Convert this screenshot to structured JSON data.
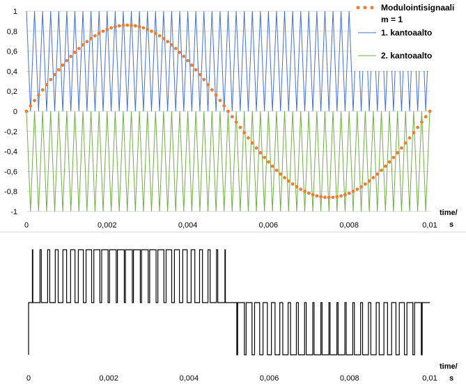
{
  "chart_data": [
    {
      "type": "line",
      "xlabel_lines": [
        "time/",
        "s"
      ],
      "xlim": [
        0,
        0.01
      ],
      "ylim": [
        -1,
        1
      ],
      "x_ticks": [
        0,
        0.002,
        0.004,
        0.006,
        0.008,
        0.01
      ],
      "x_tick_labels": [
        "0",
        "0,002",
        "0,004",
        "0,006",
        "0,008",
        "0,01"
      ],
      "y_ticks": [
        1,
        0.8,
        0.6,
        0.4,
        0.2,
        0,
        -0.2,
        -0.4,
        -0.6,
        -0.8,
        -1
      ],
      "y_tick_labels": [
        "1",
        "0,8",
        "0,6",
        "0,4",
        "0,2",
        "0",
        "-0,2",
        "-0,4",
        "-0,6",
        "-0,8",
        "-1"
      ],
      "grid": true,
      "legend_position": "top-right",
      "series": [
        {
          "name_lines": [
            "Modulointisignaali",
            "m = 1"
          ],
          "style": "dots",
          "color": "#ED7D31",
          "function": "sine",
          "amplitude": 0.86,
          "frequency_hz": 100,
          "point_step_s": 0.0001
        },
        {
          "name": "1. kantoaalto",
          "style": "line",
          "color": "#4472C4",
          "function": "triangle",
          "min": 0,
          "max": 1,
          "period_s": 0.0002
        },
        {
          "name": "2. kantoaalto",
          "style": "line",
          "color": "#70AD47",
          "function": "triangle",
          "min": -1,
          "max": 0,
          "period_s": 0.0002
        }
      ]
    },
    {
      "type": "line",
      "xlabel_lines": [
        "time/",
        "s"
      ],
      "xlim": [
        0,
        0.01
      ],
      "x_ticks": [
        0,
        0.002,
        0.004,
        0.006,
        0.008,
        0.01
      ],
      "x_tick_labels": [
        "0",
        "0,002",
        "0,004",
        "0,006",
        "0,008",
        "0,01"
      ],
      "series": [
        {
          "style": "step",
          "color": "#000000",
          "levels": [
            -1,
            0,
            1
          ]
        }
      ]
    }
  ]
}
